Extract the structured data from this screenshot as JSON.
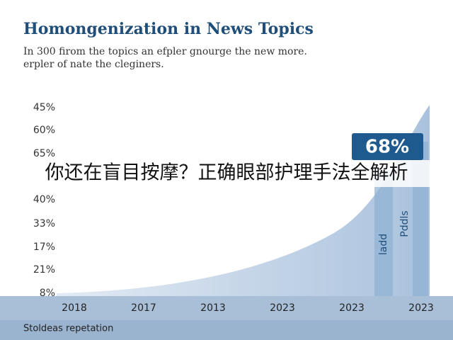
{
  "title": "Homongenization in News Topics",
  "subtitle": [
    "In 300 firom the topics an efpler gnourge the new more.",
    "erpler of nate the cleginers."
  ],
  "y_labels": [
    "45%",
    "60%",
    "65%",
    "40%",
    "33%",
    "17%",
    "21%",
    "8%"
  ],
  "x_labels": [
    "2018",
    "2017",
    "2013",
    "2023",
    "2023",
    "2023"
  ],
  "callout": "68%",
  "bar_labels": [
    "ladd",
    "Pddls"
  ],
  "footer": "Stoldeas repetation",
  "banner": "你还在盲目按摩？正确眼部护理手法全解析"
}
